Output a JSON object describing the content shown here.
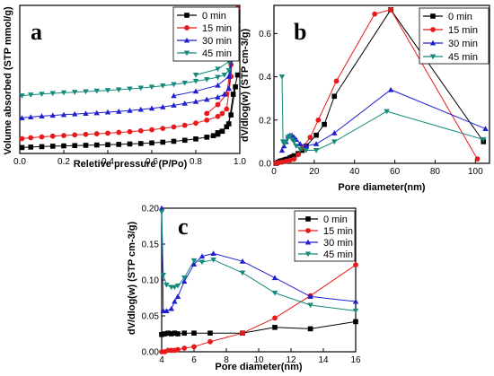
{
  "colors": {
    "0 min": "#000000",
    "15 min": "#e8191a",
    "30 min": "#1f1fd0",
    "45 min": "#148a7c"
  },
  "chart_data": [
    {
      "type": "line",
      "panel": "a",
      "xlabel": "Reletive pressure (P/Po)",
      "ylabel": "Volume absorbed (STP mmol/g)",
      "xlim": [
        0,
        1.0
      ],
      "ylim": [
        0,
        100
      ],
      "xticks": [
        "0.0",
        "0.2",
        "0.4",
        "0.6",
        "0.8",
        "1.0"
      ],
      "yticks": [],
      "legend": "top-right",
      "series": [
        {
          "name": "0 min",
          "marker": "square",
          "adsorption": [
            [
              0.01,
              4
            ],
            [
              0.05,
              4.3
            ],
            [
              0.1,
              4.6
            ],
            [
              0.15,
              4.9
            ],
            [
              0.2,
              5.1
            ],
            [
              0.25,
              5.3
            ],
            [
              0.3,
              5.5
            ],
            [
              0.35,
              5.7
            ],
            [
              0.4,
              5.9
            ],
            [
              0.45,
              6.1
            ],
            [
              0.5,
              6.4
            ],
            [
              0.55,
              6.7
            ],
            [
              0.6,
              7.1
            ],
            [
              0.65,
              7.6
            ],
            [
              0.7,
              8.2
            ],
            [
              0.75,
              8.9
            ],
            [
              0.8,
              9.8
            ],
            [
              0.85,
              11
            ],
            [
              0.88,
              12
            ],
            [
              0.9,
              13
            ],
            [
              0.92,
              15
            ],
            [
              0.94,
              18
            ],
            [
              0.96,
              26
            ],
            [
              0.98,
              45
            ]
          ],
          "desorption": [
            [
              0.99,
              53
            ],
            [
              0.97,
              40
            ],
            [
              0.95,
              20
            ],
            [
              0.92,
              15
            ],
            [
              0.9,
              14
            ]
          ]
        },
        {
          "name": "15 min",
          "marker": "circle",
          "adsorption": [
            [
              0.01,
              10
            ],
            [
              0.05,
              10.6
            ],
            [
              0.1,
              11.2
            ],
            [
              0.15,
              11.7
            ],
            [
              0.2,
              12.1
            ],
            [
              0.25,
              12.5
            ],
            [
              0.3,
              12.9
            ],
            [
              0.35,
              13.3
            ],
            [
              0.4,
              13.7
            ],
            [
              0.45,
              14.2
            ],
            [
              0.5,
              14.7
            ],
            [
              0.55,
              15.3
            ],
            [
              0.6,
              16
            ],
            [
              0.65,
              16.9
            ],
            [
              0.7,
              17.9
            ],
            [
              0.75,
              19
            ],
            [
              0.8,
              20.5
            ],
            [
              0.85,
              22.5
            ],
            [
              0.9,
              25
            ],
            [
              0.92,
              27
            ],
            [
              0.94,
              30
            ],
            [
              0.96,
              52
            ],
            [
              0.98,
              97
            ]
          ],
          "desorption": [
            [
              0.99,
              98
            ],
            [
              0.97,
              80
            ],
            [
              0.96,
              60
            ],
            [
              0.94,
              40
            ],
            [
              0.9,
              33
            ],
            [
              0.85,
              27
            ]
          ]
        },
        {
          "name": "30 min",
          "marker": "triangle-up",
          "adsorption": [
            [
              0.01,
              24
            ],
            [
              0.05,
              24.6
            ],
            [
              0.1,
              25.2
            ],
            [
              0.15,
              25.7
            ],
            [
              0.2,
              26.2
            ],
            [
              0.25,
              26.6
            ],
            [
              0.3,
              27
            ],
            [
              0.35,
              27.4
            ],
            [
              0.4,
              27.9
            ],
            [
              0.45,
              28.4
            ],
            [
              0.5,
              29
            ],
            [
              0.55,
              29.7
            ],
            [
              0.6,
              30.5
            ],
            [
              0.65,
              31.4
            ],
            [
              0.7,
              32.5
            ],
            [
              0.75,
              33.8
            ],
            [
              0.8,
              35
            ],
            [
              0.85,
              36.5
            ],
            [
              0.9,
              38
            ],
            [
              0.93,
              40
            ],
            [
              0.95,
              44
            ],
            [
              0.97,
              70
            ],
            [
              0.98,
              88
            ]
          ],
          "desorption": [
            [
              0.99,
              88
            ],
            [
              0.97,
              72
            ],
            [
              0.95,
              52
            ],
            [
              0.9,
              46
            ],
            [
              0.8,
              42
            ],
            [
              0.7,
              39
            ]
          ]
        },
        {
          "name": "45 min",
          "marker": "triangle-down",
          "adsorption": [
            [
              0.01,
              39
            ],
            [
              0.05,
              39.6
            ],
            [
              0.1,
              40.1
            ],
            [
              0.15,
              40.6
            ],
            [
              0.2,
              41
            ],
            [
              0.25,
              41.4
            ],
            [
              0.3,
              41.8
            ],
            [
              0.35,
              42.2
            ],
            [
              0.4,
              42.6
            ],
            [
              0.45,
              43.1
            ],
            [
              0.5,
              43.6
            ],
            [
              0.55,
              44.2
            ],
            [
              0.6,
              44.9
            ],
            [
              0.65,
              45.7
            ],
            [
              0.7,
              46.6
            ],
            [
              0.75,
              47.6
            ],
            [
              0.8,
              48.8
            ],
            [
              0.85,
              50
            ],
            [
              0.9,
              51.5
            ],
            [
              0.93,
              53
            ],
            [
              0.95,
              56
            ],
            [
              0.97,
              75
            ],
            [
              0.98,
              87
            ]
          ],
          "desorption": [
            [
              0.99,
              86
            ],
            [
              0.97,
              73
            ],
            [
              0.95,
              62
            ],
            [
              0.9,
              57
            ],
            [
              0.8,
              53
            ]
          ]
        }
      ]
    },
    {
      "type": "line",
      "panel": "b",
      "xlabel": "Pore diameter(nm)",
      "ylabel": "dV/dlog(w) (STP cm-3/g)",
      "xlim": [
        0,
        107
      ],
      "ylim": [
        0,
        0.73
      ],
      "xticks": [
        0,
        20,
        40,
        60,
        80,
        100
      ],
      "yticks": [
        0.0,
        0.2,
        0.4,
        0.6
      ],
      "legend": "top-right",
      "series": [
        {
          "name": "0 min",
          "marker": "square",
          "points": [
            [
              1,
              0.0
            ],
            [
              2,
              0.005
            ],
            [
              3,
              0.01
            ],
            [
              4,
              0.012
            ],
            [
              5,
              0.015
            ],
            [
              6,
              0.018
            ],
            [
              7,
              0.02
            ],
            [
              8,
              0.025
            ],
            [
              9,
              0.03
            ],
            [
              10,
              0.035
            ],
            [
              12,
              0.045
            ],
            [
              14,
              0.06
            ],
            [
              16,
              0.08
            ],
            [
              21,
              0.13
            ],
            [
              25,
              0.18
            ],
            [
              30,
              0.31
            ],
            [
              58,
              0.71
            ],
            [
              104,
              0.1
            ]
          ]
        },
        {
          "name": "15 min",
          "marker": "circle",
          "points": [
            [
              1,
              0.0
            ],
            [
              2,
              0.003
            ],
            [
              4,
              0.006
            ],
            [
              6,
              0.01
            ],
            [
              8,
              0.015
            ],
            [
              10,
              0.02
            ],
            [
              12,
              0.04
            ],
            [
              14,
              0.07
            ],
            [
              18,
              0.12
            ],
            [
              22,
              0.2
            ],
            [
              31,
              0.38
            ],
            [
              50,
              0.69
            ],
            [
              58,
              0.71
            ],
            [
              101,
              0.02
            ]
          ]
        },
        {
          "name": "30 min",
          "marker": "triangle-up",
          "points": [
            [
              4,
              0.06
            ],
            [
              5,
              0.08
            ],
            [
              6,
              0.1
            ],
            [
              7,
              0.125
            ],
            [
              8,
              0.13
            ],
            [
              9,
              0.13
            ],
            [
              10,
              0.12
            ],
            [
              11,
              0.11
            ],
            [
              13,
              0.09
            ],
            [
              16,
              0.08
            ],
            [
              21,
              0.09
            ],
            [
              30,
              0.14
            ],
            [
              58,
              0.34
            ],
            [
              105,
              0.16
            ]
          ]
        },
        {
          "name": "45 min",
          "marker": "triangle-down",
          "points": [
            [
              4,
              0.4
            ],
            [
              4.5,
              0.1
            ],
            [
              5,
              0.09
            ],
            [
              6,
              0.1
            ],
            [
              7,
              0.12
            ],
            [
              8,
              0.125
            ],
            [
              9,
              0.11
            ],
            [
              10,
              0.1
            ],
            [
              11,
              0.08
            ],
            [
              13,
              0.065
            ],
            [
              16,
              0.06
            ],
            [
              21,
              0.06
            ],
            [
              30,
              0.1
            ],
            [
              56,
              0.24
            ],
            [
              104,
              0.11
            ]
          ]
        }
      ]
    },
    {
      "type": "line",
      "panel": "c",
      "xlabel": "Pore diameter(nm)",
      "ylabel": "dV/dlog(w) (STP cm-3/g)",
      "xlim": [
        4,
        16
      ],
      "ylim": [
        0,
        0.2
      ],
      "xticks": [
        4,
        6,
        8,
        10,
        12,
        14,
        16
      ],
      "yticks": [
        0.0,
        0.05,
        0.1,
        0.15,
        0.2
      ],
      "ytick_labels": [
        "0.00",
        "0.05",
        "0.10",
        "0.15",
        "0.20"
      ],
      "legend": "top-right",
      "series": [
        {
          "name": "0 min",
          "marker": "square",
          "points": [
            [
              4.0,
              0.024
            ],
            [
              4.2,
              0.025
            ],
            [
              4.4,
              0.026
            ],
            [
              4.6,
              0.025
            ],
            [
              4.8,
              0.026
            ],
            [
              5.0,
              0.025
            ],
            [
              5.4,
              0.026
            ],
            [
              6.0,
              0.026
            ],
            [
              7.0,
              0.026
            ],
            [
              9.0,
              0.026
            ],
            [
              11.0,
              0.034
            ],
            [
              13.2,
              0.032
            ],
            [
              16.0,
              0.042
            ]
          ]
        },
        {
          "name": "15 min",
          "marker": "circle",
          "points": [
            [
              4.0,
              0.0
            ],
            [
              4.2,
              0.0
            ],
            [
              4.4,
              0.002
            ],
            [
              4.6,
              0.002
            ],
            [
              4.8,
              0.002
            ],
            [
              5.0,
              0.003
            ],
            [
              5.4,
              0.005
            ],
            [
              6.0,
              0.007
            ],
            [
              7.0,
              0.014
            ],
            [
              9.0,
              0.026
            ],
            [
              11.0,
              0.047
            ],
            [
              13.2,
              0.078
            ],
            [
              16.0,
              0.121
            ]
          ]
        },
        {
          "name": "30 min",
          "marker": "triangle-up",
          "points": [
            [
              4.0,
              0.2
            ],
            [
              4.1,
              0.057
            ],
            [
              4.3,
              0.057
            ],
            [
              4.6,
              0.06
            ],
            [
              4.8,
              0.07
            ],
            [
              5.0,
              0.077
            ],
            [
              5.4,
              0.098
            ],
            [
              6.0,
              0.122
            ],
            [
              6.5,
              0.133
            ],
            [
              7.2,
              0.137
            ],
            [
              9.0,
              0.126
            ],
            [
              11.0,
              0.103
            ],
            [
              13.2,
              0.077
            ],
            [
              16.0,
              0.07
            ]
          ]
        },
        {
          "name": "45 min",
          "marker": "triangle-down",
          "points": [
            [
              4.0,
              0.195
            ],
            [
              4.1,
              0.107
            ],
            [
              4.3,
              0.093
            ],
            [
              4.6,
              0.09
            ],
            [
              4.8,
              0.09
            ],
            [
              5.0,
              0.092
            ],
            [
              5.4,
              0.103
            ],
            [
              6.0,
              0.127
            ],
            [
              6.5,
              0.125
            ],
            [
              7.2,
              0.128
            ],
            [
              9.0,
              0.11
            ],
            [
              11.0,
              0.082
            ],
            [
              13.2,
              0.065
            ],
            [
              16.0,
              0.057
            ]
          ]
        }
      ]
    }
  ],
  "panels": {
    "a": {
      "letter": "a",
      "xlabel": "Reletive pressure (P/Po)",
      "ylabel": "Volume absorbed (STP mmol/g)",
      "legend": [
        "0 min",
        "15 min",
        "30 min",
        "45 min"
      ]
    },
    "b": {
      "letter": "b",
      "xlabel": "Pore diameter(nm)",
      "ylabel": "dV/dlog(w) (STP cm-3/g)",
      "legend": [
        "0 min",
        "15 min",
        "30 min",
        "45 min"
      ]
    },
    "c": {
      "letter": "c",
      "xlabel": "Pore diameter(nm)",
      "ylabel": "dV/dlog(w) (STP cm-3/g)",
      "legend": [
        "0 min",
        "15 min",
        "30 min",
        "45 min"
      ]
    }
  }
}
